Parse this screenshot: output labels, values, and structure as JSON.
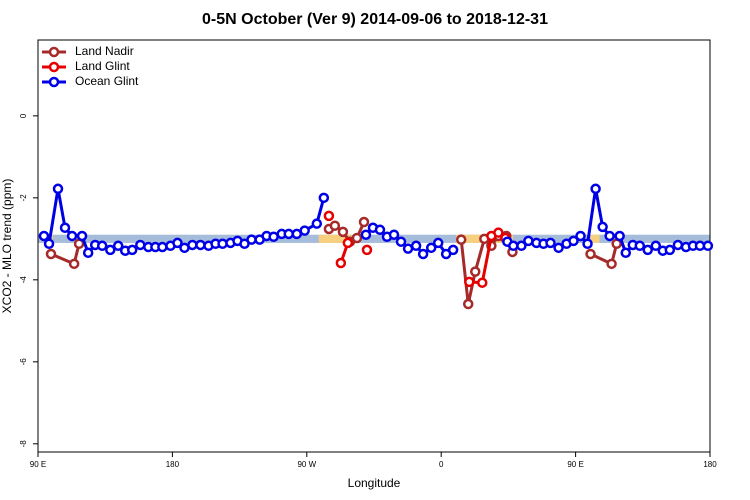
{
  "chart_data": {
    "type": "line",
    "title": "0-5N October (Ver 9)   2014-09-06 to 2018-12-31",
    "x_label": "Longitude",
    "y_label": "XCO2 - MLO trend (ppm)",
    "xlim": [
      90,
      540
    ],
    "ylim": [
      -8.2,
      1.85
    ],
    "xticks": [
      {
        "value": 90,
        "label": "90 E"
      },
      {
        "value": 180,
        "label": "180"
      },
      {
        "value": 270,
        "label": "90 W"
      },
      {
        "value": 360,
        "label": "0"
      },
      {
        "value": 450,
        "label": "90 E"
      },
      {
        "value": 540,
        "label": "180"
      }
    ],
    "yticks": [
      0,
      -2,
      -4,
      -6,
      -8
    ],
    "legend": "top-left",
    "shading": {
      "range": [
        -3.1,
        -2.9
      ],
      "color": "#a6bcdb",
      "highlight_color": "#f6d07e",
      "highlight_x": [
        [
          95,
          100
        ],
        [
          278,
          300
        ],
        [
          370,
          408
        ],
        [
          460,
          466
        ]
      ]
    },
    "series": [
      {
        "name": "Land Nadir",
        "color": "#a52a2a",
        "x": [
          98.7,
          114.2,
          117.5,
          null,
          284.8,
          288.8,
          294.2,
          298.9,
          303.6,
          308.3,
          null,
          373.4,
          378.1,
          382.8,
          388.9,
          393.6,
          398.3,
          403.6,
          407.7,
          null,
          460.0,
          474.1,
          477.5
        ],
        "values": [
          -3.37,
          -3.61,
          -3.12,
          null,
          -2.76,
          -2.68,
          -2.83,
          -3.07,
          -2.98,
          -2.59,
          null,
          -3.02,
          -4.59,
          -3.8,
          -3.0,
          -3.17,
          -2.93,
          -2.93,
          -3.32,
          null,
          -3.37,
          -3.61,
          -3.12
        ]
      },
      {
        "name": "Land Glint",
        "color": "#e60000",
        "x": [
          284.8,
          null,
          292.8,
          297.5,
          null,
          310.3,
          null,
          378.8,
          387.5,
          393.6,
          398.3,
          403.0
        ],
        "values": [
          -2.44,
          null,
          -3.59,
          -3.1,
          null,
          -3.27,
          null,
          -4.05,
          -4.07,
          -2.93,
          -2.85,
          -2.98
        ]
      },
      {
        "name": "Ocean Glint",
        "color": "#0000e6",
        "x": [
          94.0,
          97.4,
          103.4,
          108.1,
          112.8,
          119.5,
          123.6,
          128.3,
          133.0,
          138.4,
          143.7,
          148.4,
          153.1,
          158.5,
          163.9,
          168.6,
          173.3,
          178.7,
          183.4,
          188.1,
          193.4,
          198.8,
          204.2,
          208.9,
          213.6,
          218.9,
          223.6,
          228.3,
          233.0,
          238.4,
          243.1,
          247.8,
          253.2,
          257.9,
          263.3,
          268.6,
          276.7,
          281.4,
          null,
          309.6,
          314.3,
          319.0,
          323.7,
          328.4,
          333.1,
          337.8,
          343.2,
          347.9,
          353.3,
          358.0,
          363.3,
          368.0,
          null,
          404.3,
          408.3,
          413.7,
          418.4,
          423.8,
          428.5,
          433.2,
          438.6,
          443.9,
          448.6,
          453.3,
          458.0,
          463.4,
          468.1,
          472.8,
          479.5,
          483.6,
          488.3,
          493.0,
          498.3,
          503.7,
          508.4,
          513.1,
          518.5,
          523.9,
          528.6,
          533.3,
          538.6
        ],
        "values": [
          -2.93,
          -3.12,
          -1.78,
          -2.73,
          -2.93,
          -2.93,
          -3.34,
          -3.15,
          -3.17,
          -3.27,
          -3.17,
          -3.29,
          -3.27,
          -3.15,
          -3.2,
          -3.2,
          -3.2,
          -3.17,
          -3.1,
          -3.22,
          -3.15,
          -3.15,
          -3.17,
          -3.12,
          -3.12,
          -3.1,
          -3.05,
          -3.12,
          -3.02,
          -3.02,
          -2.93,
          -2.95,
          -2.88,
          -2.88,
          -2.88,
          -2.8,
          -2.63,
          -2.0,
          null,
          -2.9,
          -2.73,
          -2.78,
          -2.95,
          -2.9,
          -3.07,
          -3.24,
          -3.17,
          -3.37,
          -3.22,
          -3.1,
          -3.37,
          -3.27,
          null,
          -3.07,
          -3.17,
          -3.17,
          -3.05,
          -3.1,
          -3.12,
          -3.1,
          -3.22,
          -3.12,
          -3.05,
          -2.93,
          -3.12,
          -1.78,
          -2.71,
          -2.93,
          -2.93,
          -3.34,
          -3.15,
          -3.17,
          -3.27,
          -3.17,
          -3.29,
          -3.27,
          -3.15,
          -3.2,
          -3.17,
          -3.17,
          -3.17
        ]
      }
    ]
  }
}
